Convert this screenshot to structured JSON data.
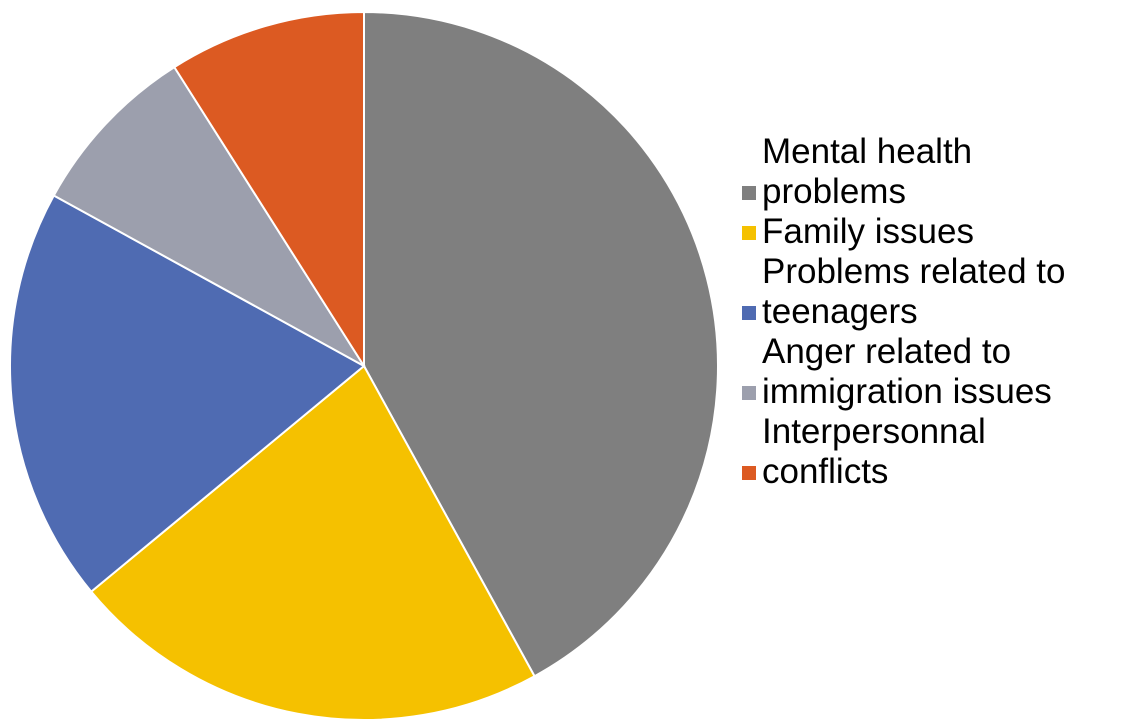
{
  "chart_data": {
    "type": "pie",
    "title": "",
    "start_angle_deg": 0,
    "direction": "clockwise",
    "legend_position": "right",
    "slices": [
      {
        "label": "Mental health problems",
        "value": 42,
        "color": "#7f7f7f"
      },
      {
        "label": "Family issues",
        "value": 22,
        "color": "#f5c100"
      },
      {
        "label": "Problems related to teenagers",
        "value": 19,
        "color": "#4f6bb2"
      },
      {
        "label": "Anger related to immigration issues",
        "value": 8,
        "color": "#9c9fad"
      },
      {
        "label": "Interpersonnal conflicts",
        "value": 9,
        "color": "#dc5a22"
      }
    ]
  }
}
